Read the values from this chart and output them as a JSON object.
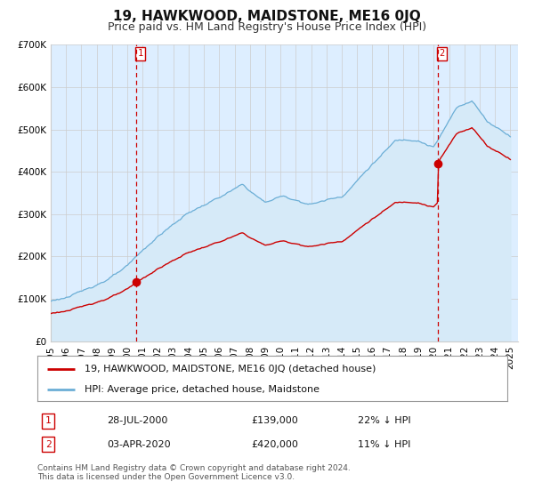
{
  "title": "19, HAWKWOOD, MAIDSTONE, ME16 0JQ",
  "subtitle": "Price paid vs. HM Land Registry's House Price Index (HPI)",
  "ylim": [
    0,
    700000
  ],
  "yticks": [
    0,
    100000,
    200000,
    300000,
    400000,
    500000,
    600000,
    700000
  ],
  "ytick_labels": [
    "£0",
    "£100K",
    "£200K",
    "£300K",
    "£400K",
    "£500K",
    "£600K",
    "£700K"
  ],
  "xlim_start": 1995.0,
  "xlim_end": 2025.5,
  "xticks": [
    1995,
    1996,
    1997,
    1998,
    1999,
    2000,
    2001,
    2002,
    2003,
    2004,
    2005,
    2006,
    2007,
    2008,
    2009,
    2010,
    2011,
    2012,
    2013,
    2014,
    2015,
    2016,
    2017,
    2018,
    2019,
    2020,
    2021,
    2022,
    2023,
    2024,
    2025
  ],
  "hpi_color": "#6baed6",
  "hpi_fill_color": "#d6eaf8",
  "price_color": "#cc0000",
  "marker_color": "#cc0000",
  "vline_color": "#cc0000",
  "grid_color": "#cccccc",
  "bg_color": "#ddeeff",
  "plot_bg": "#ffffff",
  "transaction1_x": 2000.57,
  "transaction1_y": 139000,
  "transaction1_date": "28-JUL-2000",
  "transaction1_price": "£139,000",
  "transaction1_note": "22% ↓ HPI",
  "transaction2_x": 2020.25,
  "transaction2_y": 420000,
  "transaction2_date": "03-APR-2020",
  "transaction2_price": "£420,000",
  "transaction2_note": "11% ↓ HPI",
  "legend_line1": "19, HAWKWOOD, MAIDSTONE, ME16 0JQ (detached house)",
  "legend_line2": "HPI: Average price, detached house, Maidstone",
  "footer": "Contains HM Land Registry data © Crown copyright and database right 2024.\nThis data is licensed under the Open Government Licence v3.0.",
  "title_fontsize": 11,
  "subtitle_fontsize": 9,
  "tick_fontsize": 7.5,
  "legend_fontsize": 8,
  "footer_fontsize": 6.5
}
